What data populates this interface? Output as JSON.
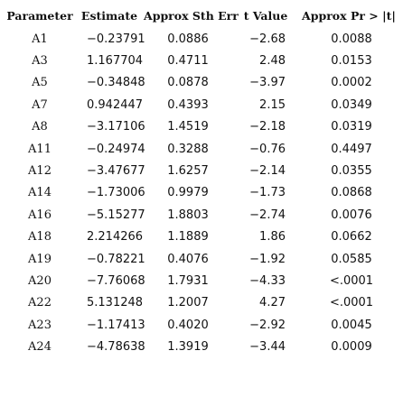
{
  "table": {
    "headers": {
      "parameter": "Parameter",
      "estimate": "Estimate",
      "std_err": "Approx Sth Err",
      "t_value": "t Value",
      "p_value": "Approx Pr > |t|"
    },
    "rows": [
      {
        "parameter": "A1",
        "estimate": "−0.23791",
        "std_err": "0.0886",
        "t_value": "−2.68",
        "p_value": "0.0088"
      },
      {
        "parameter": "A3",
        "estimate": "1.167704",
        "std_err": "0.4711",
        "t_value": "2.48",
        "p_value": "0.0153"
      },
      {
        "parameter": "A5",
        "estimate": "−0.34848",
        "std_err": "0.0878",
        "t_value": "−3.97",
        "p_value": "0.0002"
      },
      {
        "parameter": "A7",
        "estimate": "0.942447",
        "std_err": "0.4393",
        "t_value": "2.15",
        "p_value": "0.0349"
      },
      {
        "parameter": "A8",
        "estimate": "−3.17106",
        "std_err": "1.4519",
        "t_value": "−2.18",
        "p_value": "0.0319"
      },
      {
        "parameter": "A11",
        "estimate": "−0.24974",
        "std_err": "0.3288",
        "t_value": "−0.76",
        "p_value": "0.4497"
      },
      {
        "parameter": "A12",
        "estimate": "−3.47677",
        "std_err": "1.6257",
        "t_value": "−2.14",
        "p_value": "0.0355"
      },
      {
        "parameter": "A14",
        "estimate": "−1.73006",
        "std_err": "0.9979",
        "t_value": "−1.73",
        "p_value": "0.0868"
      },
      {
        "parameter": "A16",
        "estimate": "−5.15277",
        "std_err": "1.8803",
        "t_value": "−2.74",
        "p_value": "0.0076"
      },
      {
        "parameter": "A18",
        "estimate": "2.214266",
        "std_err": "1.1889",
        "t_value": "1.86",
        "p_value": "0.0662"
      },
      {
        "parameter": "A19",
        "estimate": "−0.78221",
        "std_err": "0.4076",
        "t_value": "−1.92",
        "p_value": "0.0585"
      },
      {
        "parameter": "A20",
        "estimate": "−7.76068",
        "std_err": "1.7931",
        "t_value": "−4.33",
        "p_value": "<.0001"
      },
      {
        "parameter": "A22",
        "estimate": "5.131248",
        "std_err": "1.2007",
        "t_value": "4.27",
        "p_value": "<.0001"
      },
      {
        "parameter": "A23",
        "estimate": "−1.17413",
        "std_err": "0.4020",
        "t_value": "−2.92",
        "p_value": "0.0045"
      },
      {
        "parameter": "A24",
        "estimate": "−4.78638",
        "std_err": "1.3919",
        "t_value": "−3.44",
        "p_value": "0.0009"
      }
    ]
  }
}
